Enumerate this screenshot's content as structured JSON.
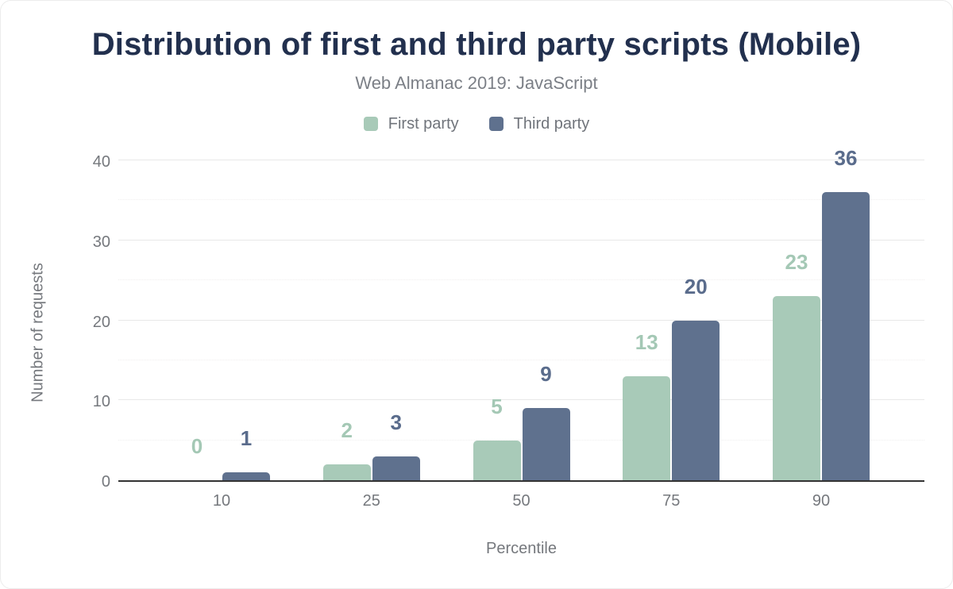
{
  "chart_data": {
    "type": "bar",
    "title": "Distribution of first and third party scripts (Mobile)",
    "subtitle": "Web Almanac 2019: JavaScript",
    "xlabel": "Percentile",
    "ylabel": "Number of requests",
    "categories": [
      "10",
      "25",
      "50",
      "75",
      "90"
    ],
    "series": [
      {
        "name": "First party",
        "color": "#a8cab8",
        "label_color": "#a4c8b5",
        "values": [
          0,
          2,
          5,
          13,
          23
        ]
      },
      {
        "name": "Third party",
        "color": "#5f718e",
        "label_color": "#5a6c8c",
        "values": [
          1,
          3,
          9,
          20,
          36
        ]
      }
    ],
    "ylim": [
      0,
      40
    ],
    "y_major_ticks": [
      0,
      10,
      20,
      30,
      40
    ],
    "y_minor_step": 5,
    "grid": true,
    "legend_position": "top",
    "bar_value_labels": true
  },
  "colors": {
    "title": "#22304e",
    "axis_text": "#75787d",
    "axis_line": "#333333",
    "gridline_major": "#e8e8e8",
    "gridline_minor": "#f0efef",
    "background": "#ffffff"
  }
}
